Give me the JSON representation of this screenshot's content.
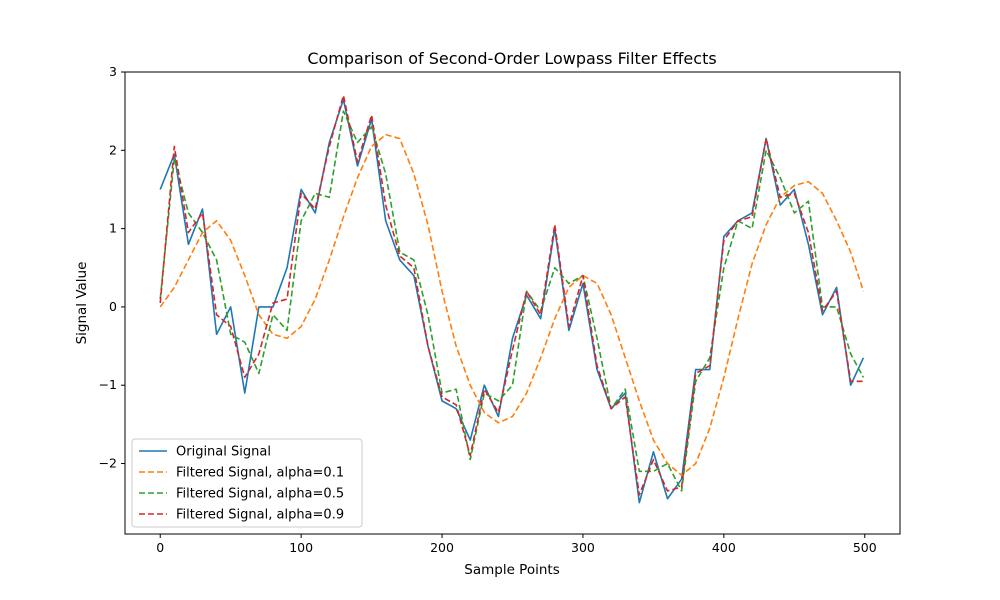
{
  "chart_data": {
    "type": "line",
    "title": "Comparison of Second-Order Lowpass Filter Effects",
    "xlabel": "Sample Points",
    "ylabel": "Signal Value",
    "xlim": [
      -25,
      525
    ],
    "ylim": [
      -2.9,
      3
    ],
    "xticks": [
      0,
      100,
      200,
      300,
      400,
      500
    ],
    "yticks": [
      -2,
      -1,
      0,
      1,
      2,
      3
    ],
    "xtick_labels": [
      "0",
      "100",
      "200",
      "300",
      "400",
      "500"
    ],
    "ytick_labels": [
      "−2",
      "−1",
      "0",
      "1",
      "2",
      "3"
    ],
    "grid": false,
    "legend_position": "lower-left",
    "x": [
      0,
      10,
      20,
      30,
      40,
      50,
      60,
      70,
      80,
      90,
      100,
      110,
      120,
      130,
      140,
      150,
      160,
      170,
      180,
      190,
      200,
      210,
      220,
      230,
      240,
      250,
      260,
      270,
      280,
      290,
      300,
      310,
      320,
      330,
      340,
      350,
      360,
      370,
      380,
      390,
      400,
      410,
      420,
      430,
      440,
      450,
      460,
      470,
      480,
      490,
      499
    ],
    "series": [
      {
        "name": "Original Signal",
        "color": "#1f77b4",
        "dash": "solid",
        "values": [
          1.5,
          1.95,
          0.8,
          1.25,
          -0.35,
          0.0,
          -1.1,
          0.0,
          0.0,
          0.5,
          1.5,
          1.2,
          2.1,
          2.65,
          1.8,
          2.4,
          1.1,
          0.6,
          0.4,
          -0.5,
          -1.2,
          -1.3,
          -1.7,
          -1.0,
          -1.4,
          -0.4,
          0.15,
          -0.15,
          1.0,
          -0.3,
          0.3,
          -0.8,
          -1.3,
          -1.1,
          -2.5,
          -1.85,
          -2.45,
          -2.2,
          -0.8,
          -0.8,
          0.9,
          1.1,
          1.2,
          2.15,
          1.3,
          1.5,
          0.8,
          -0.1,
          0.25,
          -1.0,
          -0.65
        ]
      },
      {
        "name": "Filtered Signal, alpha=0.1",
        "color": "#ff7f0e",
        "dash": "dashed",
        "values": [
          0.0,
          0.25,
          0.6,
          0.95,
          1.1,
          0.85,
          0.4,
          -0.1,
          -0.35,
          -0.4,
          -0.25,
          0.1,
          0.6,
          1.15,
          1.65,
          2.05,
          2.2,
          2.15,
          1.7,
          1.05,
          0.2,
          -0.5,
          -1.0,
          -1.35,
          -1.48,
          -1.4,
          -1.1,
          -0.65,
          -0.15,
          0.25,
          0.4,
          0.3,
          -0.1,
          -0.65,
          -1.2,
          -1.7,
          -2.0,
          -2.15,
          -2.0,
          -1.55,
          -0.9,
          -0.15,
          0.55,
          1.05,
          1.4,
          1.55,
          1.6,
          1.45,
          1.1,
          0.7,
          0.2
        ]
      },
      {
        "name": "Filtered Signal, alpha=0.5",
        "color": "#2ca02c",
        "dash": "dashed",
        "values": [
          0.1,
          1.9,
          1.2,
          0.95,
          0.6,
          -0.35,
          -0.45,
          -0.85,
          -0.1,
          -0.3,
          1.1,
          1.45,
          1.4,
          2.5,
          2.1,
          2.3,
          1.7,
          0.7,
          0.6,
          -0.1,
          -1.1,
          -1.05,
          -1.95,
          -1.1,
          -1.2,
          -1.0,
          0.2,
          -0.05,
          0.5,
          0.3,
          0.4,
          -0.4,
          -1.3,
          -1.05,
          -2.1,
          -2.1,
          -2.0,
          -2.35,
          -0.95,
          -0.65,
          0.5,
          1.1,
          1.0,
          2.0,
          1.65,
          1.2,
          1.35,
          0.0,
          0.0,
          -0.6,
          -0.9
        ]
      },
      {
        "name": "Filtered Signal, alpha=0.9",
        "color": "#d62728",
        "dash": "dashed",
        "values": [
          0.05,
          2.05,
          0.95,
          1.2,
          -0.1,
          -0.25,
          -0.9,
          -0.6,
          0.05,
          0.1,
          1.45,
          1.25,
          2.05,
          2.7,
          1.85,
          2.45,
          1.3,
          0.65,
          0.5,
          -0.5,
          -1.15,
          -1.25,
          -1.9,
          -1.05,
          -1.35,
          -0.55,
          0.2,
          -0.1,
          1.05,
          -0.25,
          0.4,
          -0.75,
          -1.3,
          -1.15,
          -2.4,
          -1.95,
          -2.35,
          -2.3,
          -0.85,
          -0.75,
          0.85,
          1.1,
          1.15,
          2.15,
          1.4,
          1.45,
          0.95,
          -0.05,
          0.2,
          -0.95,
          -0.95
        ]
      }
    ]
  }
}
